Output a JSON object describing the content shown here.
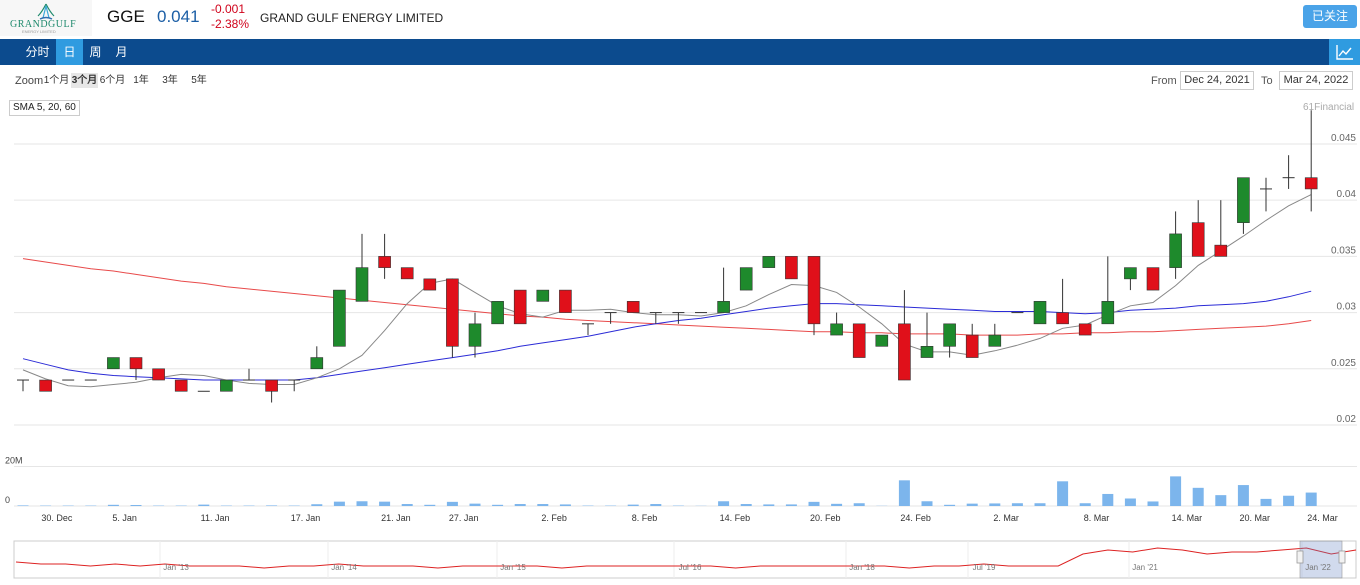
{
  "header": {
    "logo_text": "GRANDGULF",
    "logo_sub": "ENERGY LIMITED",
    "ticker": "GGE",
    "price": "0.041",
    "change": "-0.001",
    "change_pct": "-2.38%",
    "company_name": "GRAND GULF ENERGY LIMITED",
    "follow_label": "已关注"
  },
  "nav": {
    "tabs": [
      {
        "label": "分时"
      },
      {
        "label": "日",
        "active": true
      },
      {
        "label": "周"
      },
      {
        "label": "月"
      }
    ],
    "icon": "line-chart-icon"
  },
  "toolbar": {
    "zoom_label": "Zoom",
    "zoom_options": [
      "1个月",
      "3个月",
      "6个月",
      "1年",
      "3年",
      "5年"
    ],
    "zoom_selected": "3个月",
    "from_label": "From",
    "from_value": "Dec 24, 2021",
    "to_label": "To",
    "to_value": "Mar 24, 2022"
  },
  "legend": {
    "indicator": "SMA 5, 20, 60"
  },
  "credit": "61Financial",
  "colors": {
    "up": "#1e8a2c",
    "down": "#e0101a",
    "sma5": "#888888",
    "sma20": "#2b2bd6",
    "sma60": "#e84a4a",
    "volume": "#7cb5ec",
    "nav": "#0c4b8e",
    "accent": "#2f9be0"
  },
  "chart_data": {
    "type": "candlestick",
    "y_ticks": [
      "0.045",
      "0.04",
      "0.035",
      "0.03",
      "0.025",
      "0.02"
    ],
    "ylim": [
      0.02,
      0.049
    ],
    "x_labels": [
      "30. Dec",
      "5. Jan",
      "11. Jan",
      "17. Jan",
      "21. Jan",
      "27. Jan",
      "2. Feb",
      "8. Feb",
      "14. Feb",
      "20. Feb",
      "24. Feb",
      "2. Mar",
      "8. Mar",
      "14. Mar",
      "20. Mar",
      "24. Mar"
    ],
    "ohlc": [
      [
        0.024,
        0.024,
        0.023,
        0.024
      ],
      [
        0.024,
        0.024,
        0.023,
        0.023
      ],
      [
        0.024,
        0.024,
        0.024,
        0.024
      ],
      [
        0.024,
        0.024,
        0.024,
        0.024
      ],
      [
        0.025,
        0.026,
        0.025,
        0.026
      ],
      [
        0.026,
        0.026,
        0.024,
        0.025
      ],
      [
        0.025,
        0.025,
        0.024,
        0.024
      ],
      [
        0.024,
        0.024,
        0.023,
        0.023
      ],
      [
        0.023,
        0.023,
        0.023,
        0.023
      ],
      [
        0.023,
        0.024,
        0.023,
        0.024
      ],
      [
        0.024,
        0.025,
        0.024,
        0.024
      ],
      [
        0.024,
        0.024,
        0.022,
        0.023
      ],
      [
        0.024,
        0.024,
        0.023,
        0.024
      ],
      [
        0.025,
        0.027,
        0.025,
        0.026
      ],
      [
        0.027,
        0.032,
        0.027,
        0.032
      ],
      [
        0.031,
        0.037,
        0.031,
        0.034
      ],
      [
        0.035,
        0.037,
        0.033,
        0.034
      ],
      [
        0.034,
        0.034,
        0.033,
        0.033
      ],
      [
        0.033,
        0.033,
        0.032,
        0.032
      ],
      [
        0.033,
        0.033,
        0.026,
        0.027
      ],
      [
        0.027,
        0.03,
        0.026,
        0.029
      ],
      [
        0.029,
        0.031,
        0.029,
        0.031
      ],
      [
        0.032,
        0.032,
        0.029,
        0.029
      ],
      [
        0.031,
        0.032,
        0.031,
        0.032
      ],
      [
        0.032,
        0.032,
        0.03,
        0.03
      ],
      [
        0.029,
        0.029,
        0.028,
        0.029
      ],
      [
        0.03,
        0.03,
        0.029,
        0.03
      ],
      [
        0.031,
        0.031,
        0.03,
        0.03
      ],
      [
        0.03,
        0.03,
        0.029,
        0.03
      ],
      [
        0.03,
        0.03,
        0.029,
        0.03
      ],
      [
        0.03,
        0.03,
        0.03,
        0.03
      ],
      [
        0.03,
        0.034,
        0.03,
        0.031
      ],
      [
        0.032,
        0.034,
        0.032,
        0.034
      ],
      [
        0.034,
        0.035,
        0.034,
        0.035
      ],
      [
        0.035,
        0.035,
        0.033,
        0.033
      ],
      [
        0.035,
        0.035,
        0.028,
        0.029
      ],
      [
        0.028,
        0.03,
        0.028,
        0.029
      ],
      [
        0.029,
        0.029,
        0.026,
        0.026
      ],
      [
        0.027,
        0.028,
        0.027,
        0.028
      ],
      [
        0.029,
        0.032,
        0.024,
        0.024
      ],
      [
        0.026,
        0.03,
        0.026,
        0.027
      ],
      [
        0.027,
        0.029,
        0.026,
        0.029
      ],
      [
        0.028,
        0.029,
        0.026,
        0.026
      ],
      [
        0.027,
        0.029,
        0.027,
        0.028
      ],
      [
        0.03,
        0.03,
        0.03,
        0.03
      ],
      [
        0.029,
        0.031,
        0.029,
        0.031
      ],
      [
        0.03,
        0.033,
        0.029,
        0.029
      ],
      [
        0.029,
        0.029,
        0.028,
        0.028
      ],
      [
        0.029,
        0.035,
        0.029,
        0.031
      ],
      [
        0.033,
        0.034,
        0.032,
        0.034
      ],
      [
        0.034,
        0.034,
        0.032,
        0.032
      ],
      [
        0.034,
        0.039,
        0.033,
        0.037
      ],
      [
        0.038,
        0.04,
        0.035,
        0.035
      ],
      [
        0.036,
        0.04,
        0.035,
        0.035
      ],
      [
        0.038,
        0.042,
        0.037,
        0.042
      ],
      [
        0.041,
        0.042,
        0.039,
        0.041
      ],
      [
        0.042,
        0.044,
        0.041,
        0.042
      ],
      [
        0.042,
        0.048,
        0.039,
        0.041
      ]
    ],
    "volume": [
      0.3,
      0.2,
      0.2,
      0.2,
      0.6,
      0.5,
      0.2,
      0.2,
      0.7,
      0.2,
      0.2,
      0.3,
      0.2,
      0.9,
      2.2,
      2.4,
      2.2,
      1.0,
      0.6,
      2.1,
      1.2,
      0.6,
      1.0,
      1.0,
      0.8,
      0.2,
      0.2,
      0.7,
      1.0,
      0.2,
      0.1,
      2.4,
      1.0,
      0.8,
      0.8,
      2.1,
      1.1,
      1.4,
      0.1,
      13.0,
      2.4,
      0.6,
      1.2,
      1.3,
      1.4,
      1.4,
      12.5,
      1.4,
      6.1,
      3.8,
      2.3,
      15.0,
      9.2,
      5.5,
      10.6,
      3.6,
      5.2,
      6.8
    ],
    "volume_ticks": [
      "20M",
      "0"
    ],
    "sma5": [
      0.0249,
      0.0241,
      0.0235,
      0.0234,
      0.0236,
      0.0238,
      0.0242,
      0.0245,
      0.0244,
      0.024,
      0.0237,
      0.0236,
      0.0236,
      0.0242,
      0.025,
      0.0262,
      0.0284,
      0.0308,
      0.0326,
      0.033,
      0.0318,
      0.0306,
      0.0299,
      0.0296,
      0.0302,
      0.0302,
      0.0303,
      0.03,
      0.0298,
      0.0298,
      0.0297,
      0.03,
      0.0306,
      0.0316,
      0.0325,
      0.0324,
      0.0318,
      0.0305,
      0.029,
      0.0272,
      0.0265,
      0.0265,
      0.0262,
      0.0266,
      0.0271,
      0.0277,
      0.0286,
      0.0289,
      0.0298,
      0.0306,
      0.0309,
      0.0324,
      0.0342,
      0.0355,
      0.0368,
      0.0382,
      0.0395,
      0.0405
    ],
    "sma20": [
      0.0259,
      0.0254,
      0.0249,
      0.0246,
      0.0244,
      0.0243,
      0.0242,
      0.0241,
      0.024,
      0.024,
      0.024,
      0.024,
      0.024,
      0.0242,
      0.0245,
      0.0248,
      0.0251,
      0.0254,
      0.0257,
      0.026,
      0.0263,
      0.0266,
      0.027,
      0.0273,
      0.0276,
      0.0279,
      0.0283,
      0.0287,
      0.029,
      0.0293,
      0.0295,
      0.0298,
      0.0301,
      0.0304,
      0.0306,
      0.0308,
      0.0308,
      0.0307,
      0.0306,
      0.0305,
      0.0304,
      0.0303,
      0.0302,
      0.0301,
      0.0301,
      0.0301,
      0.03,
      0.0299,
      0.03,
      0.0302,
      0.0303,
      0.0304,
      0.0306,
      0.0307,
      0.0308,
      0.031,
      0.0314,
      0.0319
    ],
    "sma60": [
      0.0348,
      0.0345,
      0.0342,
      0.0339,
      0.0337,
      0.0334,
      0.0331,
      0.0328,
      0.0326,
      0.0323,
      0.0321,
      0.0319,
      0.0317,
      0.0315,
      0.0313,
      0.0311,
      0.0309,
      0.0307,
      0.0305,
      0.0303,
      0.0301,
      0.0299,
      0.0297,
      0.0296,
      0.0294,
      0.0293,
      0.0292,
      0.0291,
      0.029,
      0.0289,
      0.0288,
      0.0287,
      0.0286,
      0.0285,
      0.0284,
      0.0283,
      0.0283,
      0.0282,
      0.0282,
      0.0281,
      0.0281,
      0.0281,
      0.028,
      0.028,
      0.028,
      0.0281,
      0.0281,
      0.0282,
      0.0282,
      0.0283,
      0.0283,
      0.0284,
      0.0285,
      0.0286,
      0.0287,
      0.0288,
      0.029,
      0.0293
    ],
    "navigator_labels": [
      "Jan '13",
      "Jan '14",
      "Jan '15",
      "Jul '16",
      "Jan '18",
      "Jul '19",
      "Jan '21",
      "Jan '22"
    ],
    "navigator_series": [
      0.032,
      0.031,
      0.031,
      0.03,
      0.031,
      0.03,
      0.031,
      0.03,
      0.03,
      0.03,
      0.029,
      0.03,
      0.03,
      0.031,
      0.03,
      0.03,
      0.03,
      0.029,
      0.03,
      0.03,
      0.03,
      0.03,
      0.029,
      0.03,
      0.03,
      0.03,
      0.03,
      0.03,
      0.03,
      0.029,
      0.03,
      0.03,
      0.03,
      0.03,
      0.03,
      0.03,
      0.029,
      0.03,
      0.03,
      0.031,
      0.03,
      0.03,
      0.03,
      0.036,
      0.038,
      0.037,
      0.039,
      0.038,
      0.036,
      0.037,
      0.037,
      0.038,
      0.039,
      0.036,
      0.038
    ]
  }
}
